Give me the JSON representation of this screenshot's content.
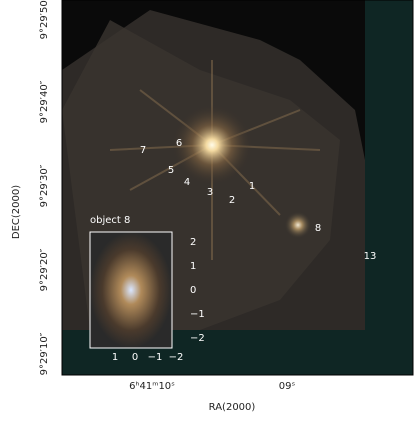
{
  "figure": {
    "y_axis": {
      "label": "DEC(2000)",
      "ticks": [
        "9°29′50″",
        "9°29′40″",
        "9°29′30″",
        "9°29′20″",
        "9°29′10″"
      ]
    },
    "x_axis": {
      "label": "RA(2000)",
      "ticks": [
        "6ʰ41ᵐ10ˢ",
        "09ˢ"
      ]
    },
    "objects": [
      "7",
      "6",
      "5",
      "4",
      "3",
      "2",
      "1",
      "8",
      "13"
    ],
    "inset": {
      "title": "object 8",
      "x_ticks": [
        "1",
        "0",
        "−1",
        "−2"
      ],
      "y_ticks": [
        "2",
        "1",
        "0",
        "−1",
        "−2"
      ]
    }
  }
}
